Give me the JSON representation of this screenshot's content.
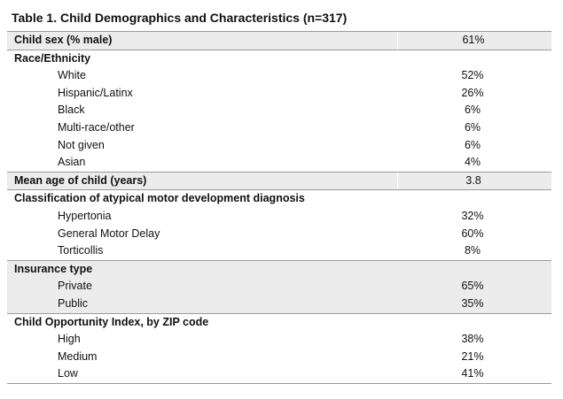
{
  "title": "Table 1. Child Demographics and Characteristics (n=317)",
  "groups": [
    {
      "shaded": true,
      "header": {
        "label": "Child sex (% male)",
        "value": "61%"
      },
      "items": []
    },
    {
      "shaded": false,
      "header": {
        "label": "Race/Ethnicity",
        "value": ""
      },
      "items": [
        {
          "label": "White",
          "value": "52%"
        },
        {
          "label": "Hispanic/Latinx",
          "value": "26%"
        },
        {
          "label": "Black",
          "value": "6%"
        },
        {
          "label": "Multi-race/other",
          "value": "6%"
        },
        {
          "label": "Not given",
          "value": "6%"
        },
        {
          "label": "Asian",
          "value": "4%"
        }
      ]
    },
    {
      "shaded": true,
      "header": {
        "label": "Mean age of child (years)",
        "value": "3.8"
      },
      "items": []
    },
    {
      "shaded": false,
      "header": {
        "label": "Classification of atypical motor development diagnosis",
        "value": ""
      },
      "items": [
        {
          "label": "Hypertonia",
          "value": "32%"
        },
        {
          "label": "General Motor Delay",
          "value": "60%"
        },
        {
          "label": "Torticollis",
          "value": "8%"
        }
      ]
    },
    {
      "shaded": true,
      "header": {
        "label": "Insurance type",
        "value": ""
      },
      "items": [
        {
          "label": "Private",
          "value": "65%"
        },
        {
          "label": "Public",
          "value": "35%"
        }
      ]
    },
    {
      "shaded": false,
      "header": {
        "label": "Child Opportunity Index, by ZIP code",
        "value": ""
      },
      "items": [
        {
          "label": "High",
          "value": "38%"
        },
        {
          "label": "Medium",
          "value": "21%"
        },
        {
          "label": "Low",
          "value": "41%"
        }
      ]
    }
  ]
}
